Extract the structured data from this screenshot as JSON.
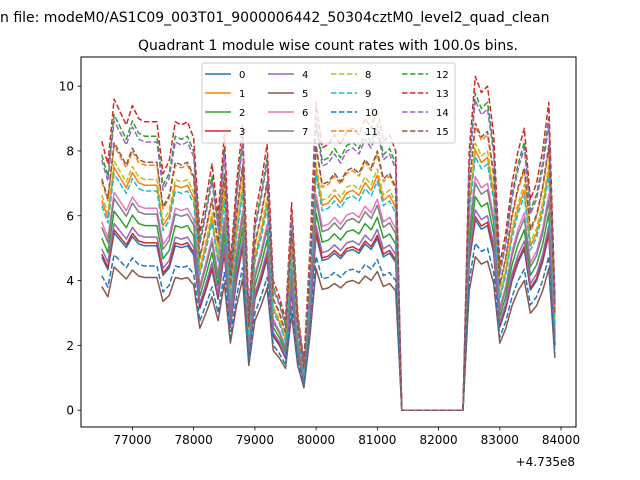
{
  "figure": {
    "suptitle": "n file: modeM0/AS1C09_003T01_9000006442_50304cztM0_level2_quad_clean",
    "offset_label": "+4.735e8"
  },
  "chart_data": {
    "type": "line",
    "title": "Quadrant 1 module wise count rates with 100.0s bins.",
    "xlabel": "",
    "ylabel": "",
    "xlim": [
      76160,
      84245
    ],
    "ylim": [
      -0.52,
      10.9
    ],
    "x_offset": 473500000,
    "xticks": [
      77000,
      78000,
      79000,
      80000,
      81000,
      82000,
      83000,
      84000
    ],
    "xtick_labels": [
      "77000",
      "78000",
      "79000",
      "80000",
      "81000",
      "82000",
      "83000",
      "84000"
    ],
    "yticks": [
      0,
      2,
      4,
      6,
      8,
      10
    ],
    "ytick_labels": [
      "0",
      "2",
      "4",
      "6",
      "8",
      "10"
    ],
    "grid": false,
    "legend_placement": "top-center",
    "legend_columns": 4,
    "x_start": 76500,
    "x_step": 100,
    "note": "series value = profile[i] * level (estimated)",
    "profile": [
      8.3,
      7.6,
      9.6,
      9.2,
      8.8,
      9.4,
      9.0,
      8.9,
      8.9,
      8.9,
      7.3,
      7.7,
      8.9,
      8.8,
      8.9,
      8.4,
      5.5,
      6.5,
      7.6,
      6.0,
      8.5,
      4.5,
      7.0,
      8.8,
      3.0,
      6.0,
      7.0,
      8.2,
      4.0,
      3.5,
      2.8,
      6.4,
      3.0,
      1.5,
      5.0,
      9.5,
      8.1,
      8.2,
      8.5,
      8.2,
      8.6,
      8.7,
      8.5,
      9.0,
      8.7,
      9.3,
      8.3,
      8.5,
      8.0,
      0,
      0,
      0,
      0,
      0,
      0,
      0,
      0,
      0,
      0,
      0,
      8.0,
      10.3,
      9.8,
      10.0,
      8.5,
      4.5,
      5.5,
      7.0,
      8.0,
      8.7,
      6.5,
      7.0,
      8.0,
      9.5,
      3.5
    ],
    "series": [
      {
        "name": "0",
        "color": "#1f77b4",
        "dashed": false,
        "level": 0.57
      },
      {
        "name": "1",
        "color": "#ff7f0e",
        "dashed": false,
        "level": 0.78
      },
      {
        "name": "2",
        "color": "#2ca02c",
        "dashed": false,
        "level": 0.64
      },
      {
        "name": "3",
        "color": "#d62728",
        "dashed": false,
        "level": 0.58
      },
      {
        "name": "4",
        "color": "#9467bd",
        "dashed": false,
        "level": 0.6
      },
      {
        "name": "5",
        "color": "#8c564b",
        "dashed": false,
        "level": 0.46
      },
      {
        "name": "6",
        "color": "#e377c2",
        "dashed": false,
        "level": 0.7
      },
      {
        "name": "7",
        "color": "#7f7f7f",
        "dashed": false,
        "level": 0.68
      },
      {
        "name": "8",
        "color": "#bcbd22",
        "dashed": true,
        "level": 0.8
      },
      {
        "name": "9",
        "color": "#17becf",
        "dashed": true,
        "level": 0.76
      },
      {
        "name": "10",
        "color": "#1f77b4",
        "dashed": true,
        "level": 0.5
      },
      {
        "name": "11",
        "color": "#ff7f0e",
        "dashed": true,
        "level": 0.85
      },
      {
        "name": "12",
        "color": "#2ca02c",
        "dashed": true,
        "level": 0.95
      },
      {
        "name": "13",
        "color": "#d62728",
        "dashed": true,
        "level": 1.0
      },
      {
        "name": "14",
        "color": "#9467bd",
        "dashed": true,
        "level": 0.93
      },
      {
        "name": "15",
        "color": "#8c564b",
        "dashed": true,
        "level": 0.86
      }
    ]
  }
}
